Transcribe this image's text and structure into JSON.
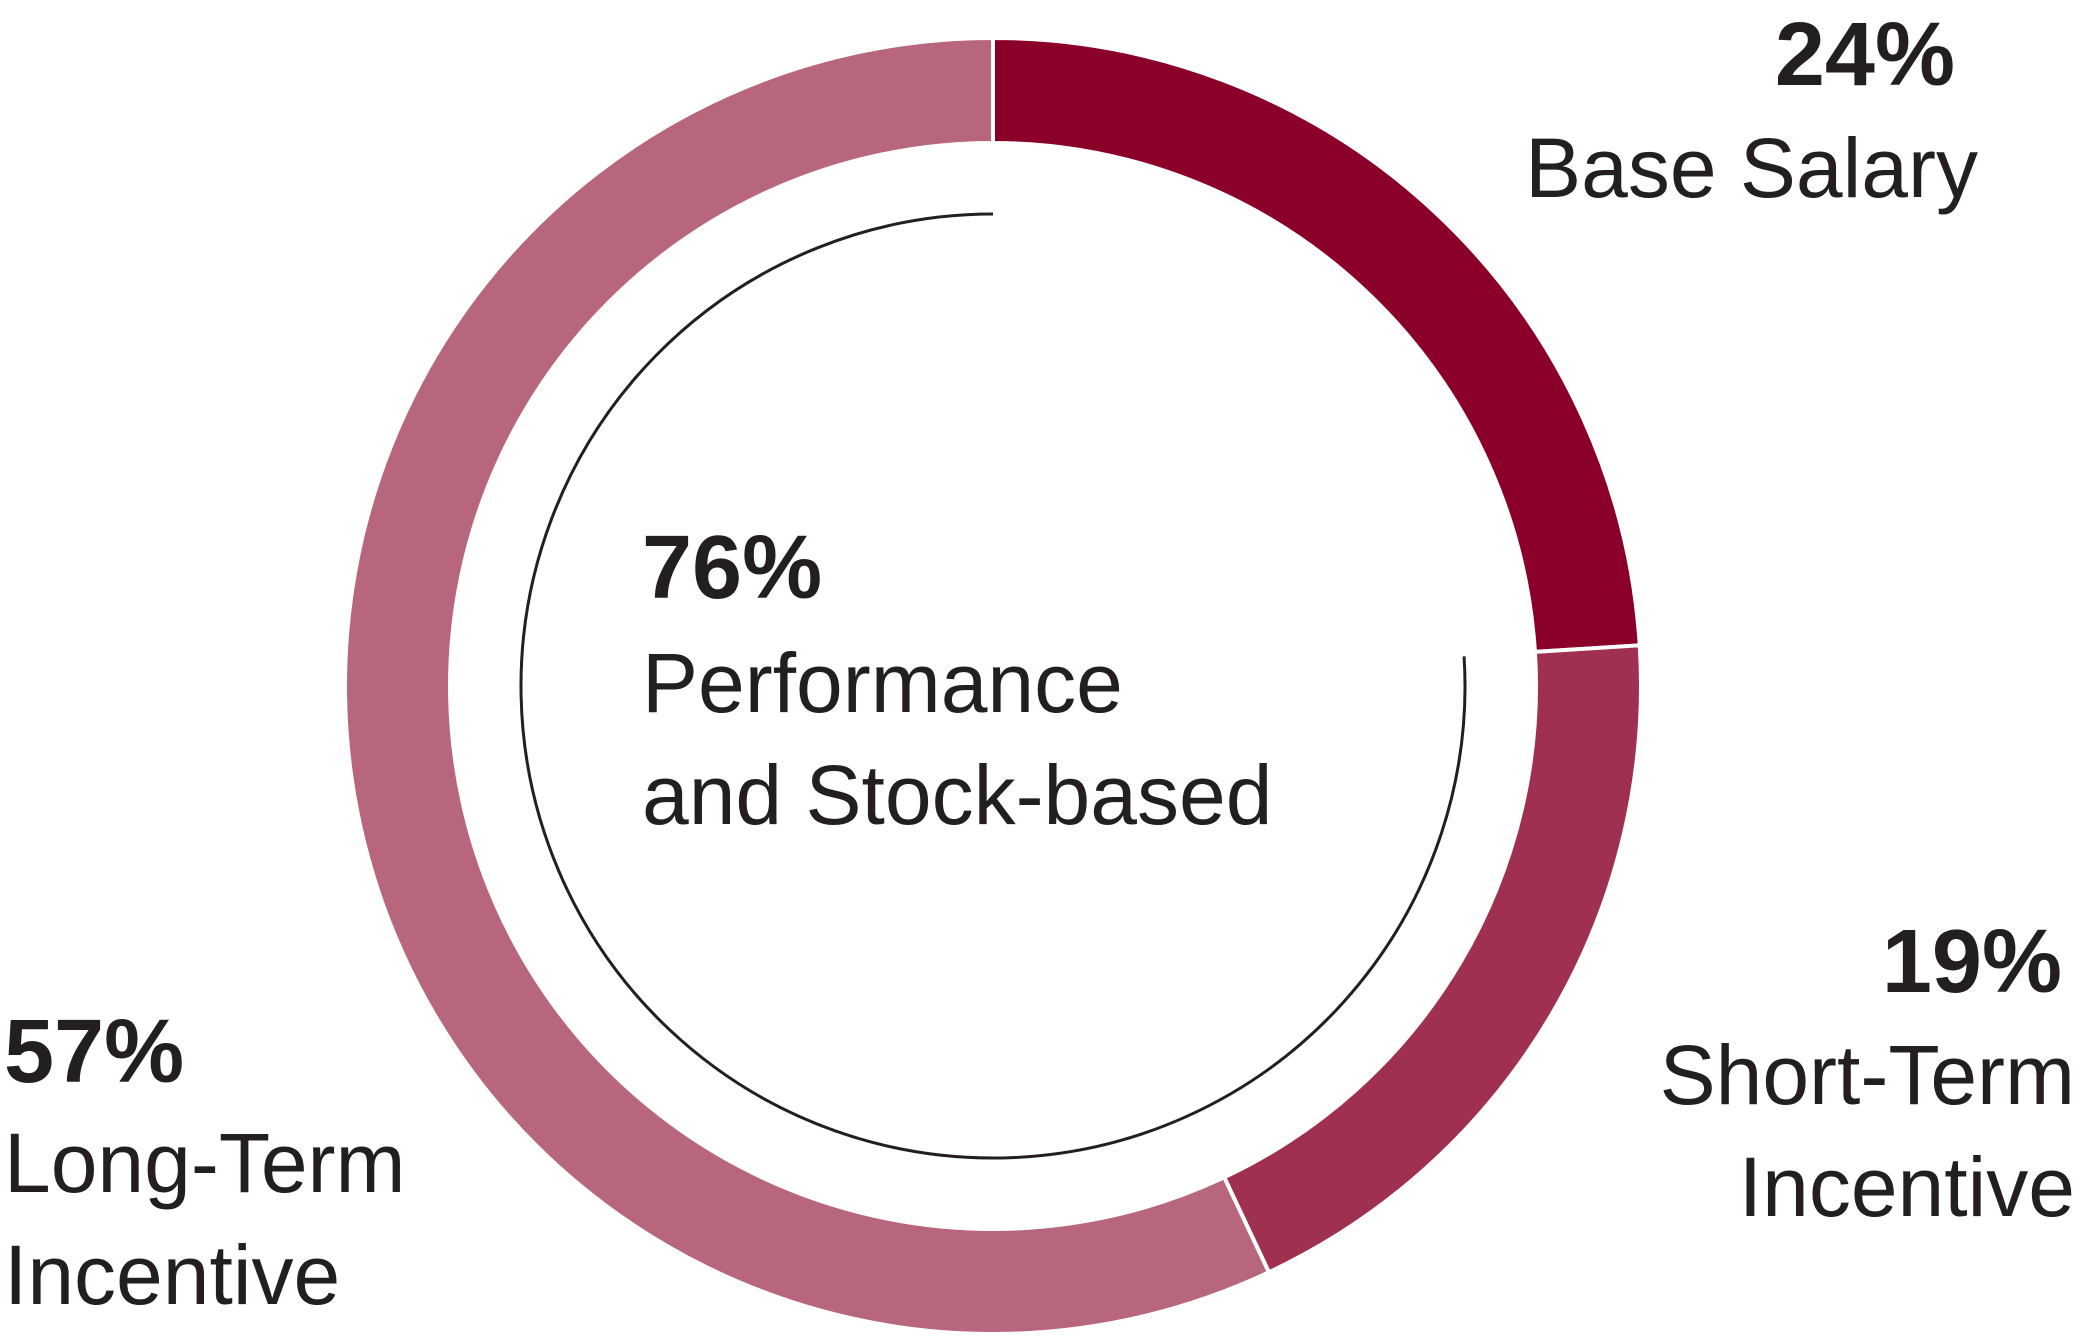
{
  "chart_data": {
    "type": "pie",
    "variant": "donut",
    "slices": [
      {
        "value": 24,
        "label_value": "24%",
        "label": [
          "Base Salary"
        ],
        "color": "#8a0029"
      },
      {
        "value": 19,
        "label_value": "19%",
        "label": [
          "Short-Term",
          "Incentive"
        ],
        "color": "#a03050"
      },
      {
        "value": 57,
        "label_value": "57%",
        "label": [
          "Long-Term",
          "Incentive"
        ],
        "color": "#b8667c"
      }
    ],
    "center_annotation": {
      "value": "76%",
      "label": [
        "Performance",
        "and Stock-based"
      ],
      "arc_percent": 76
    }
  }
}
